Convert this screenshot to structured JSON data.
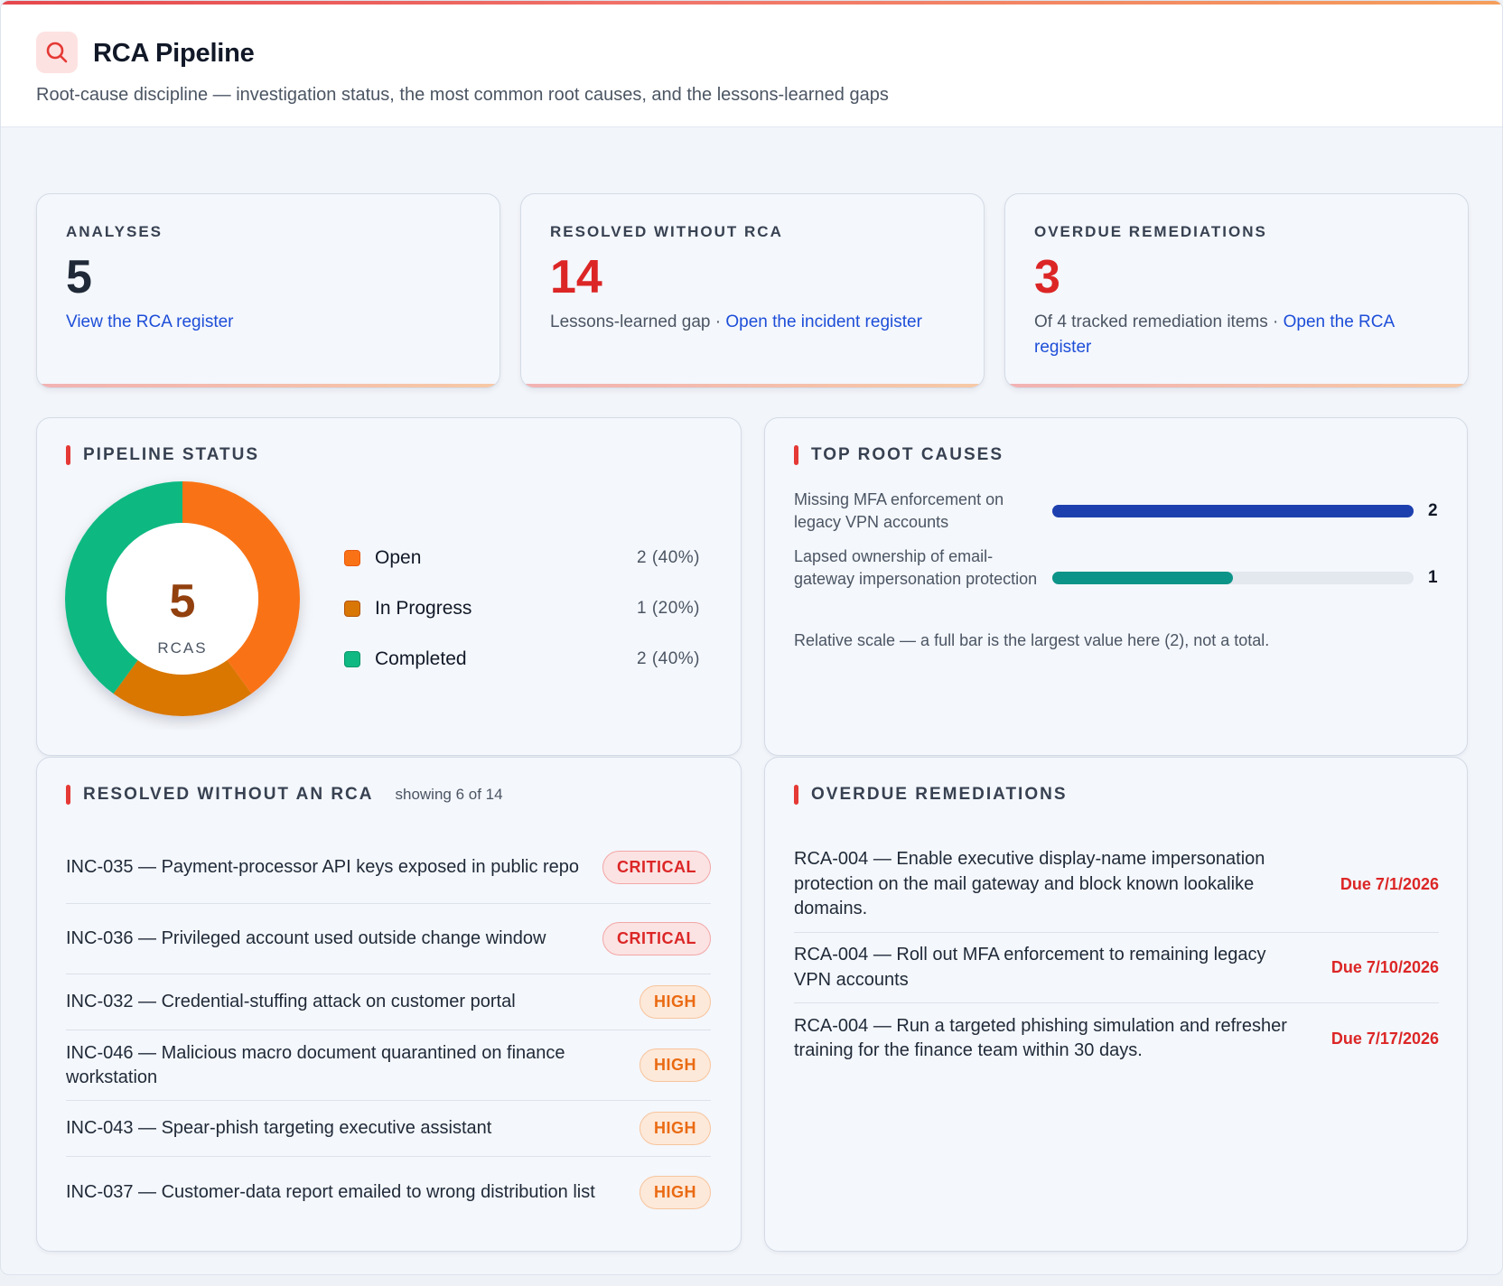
{
  "header": {
    "title": "RCA Pipeline",
    "subtitle": "Root-cause discipline — investigation status, the most common root causes, and the lessons-learned gaps",
    "logo_icon": "search-icon"
  },
  "kpis": [
    {
      "label": "ANALYSES",
      "value": "5",
      "value_color": "#1f2937",
      "desc": "",
      "link": "View the RCA register"
    },
    {
      "label": "RESOLVED WITHOUT RCA",
      "value": "14",
      "value_color": "#dc2626",
      "desc": "Lessons-learned gap · ",
      "link": "Open the incident register"
    },
    {
      "label": "OVERDUE REMEDIATIONS",
      "value": "3",
      "value_color": "#dc2626",
      "desc": "Of 4 tracked remediation items · ",
      "link": "Open the RCA register"
    }
  ],
  "pipeline": {
    "title": "PIPELINE STATUS",
    "total": "5",
    "total_label": "RCAS",
    "items": [
      {
        "label": "Open",
        "value": "2 (40%)",
        "count": 2,
        "color": "#f97316"
      },
      {
        "label": "In Progress",
        "value": "1 (20%)",
        "count": 1,
        "color": "#d97706"
      },
      {
        "label": "Completed",
        "value": "2 (40%)",
        "count": 2,
        "color": "#10b981"
      }
    ]
  },
  "root_causes": {
    "title": "TOP ROOT CAUSES",
    "items": [
      {
        "label": "Missing MFA enforcement on legacy VPN accounts",
        "count": "2",
        "fraction": 1.0,
        "color": "#1e40af"
      },
      {
        "label": "Lapsed ownership of email-gateway impersonation protection",
        "count": "1",
        "fraction": 0.5,
        "color": "#0d9488"
      }
    ],
    "note": "Relative scale — a full bar is the largest value here (2), not a total."
  },
  "resolved": {
    "title": "RESOLVED WITHOUT AN RCA",
    "showing": "showing 6 of 14",
    "items": [
      {
        "text": "INC-035 — Payment-processor API keys exposed in public repo",
        "severity": "CRITICAL"
      },
      {
        "text": "INC-036 — Privileged account used outside change window",
        "severity": "CRITICAL"
      },
      {
        "text": "INC-032 — Credential-stuffing attack on customer portal",
        "severity": "HIGH"
      },
      {
        "text": "INC-046 — Malicious macro document quarantined on finance workstation",
        "severity": "HIGH"
      },
      {
        "text": "INC-043 — Spear-phish targeting executive assistant",
        "severity": "HIGH"
      },
      {
        "text": "INC-037 — Customer-data report emailed to wrong distribution list",
        "severity": "HIGH"
      }
    ]
  },
  "overdue": {
    "title": "OVERDUE REMEDIATIONS",
    "items": [
      {
        "text": "RCA-004 — Enable executive display-name impersonation protection on the mail gateway and block known lookalike domains.",
        "due": "Due 7/1/2026"
      },
      {
        "text": "RCA-004 — Roll out MFA enforcement to remaining legacy VPN accounts",
        "due": "Due 7/10/2026"
      },
      {
        "text": "RCA-004 — Run a targeted phishing simulation and refresher training for the finance team within 30 days.",
        "due": "Due 7/17/2026"
      }
    ]
  }
}
